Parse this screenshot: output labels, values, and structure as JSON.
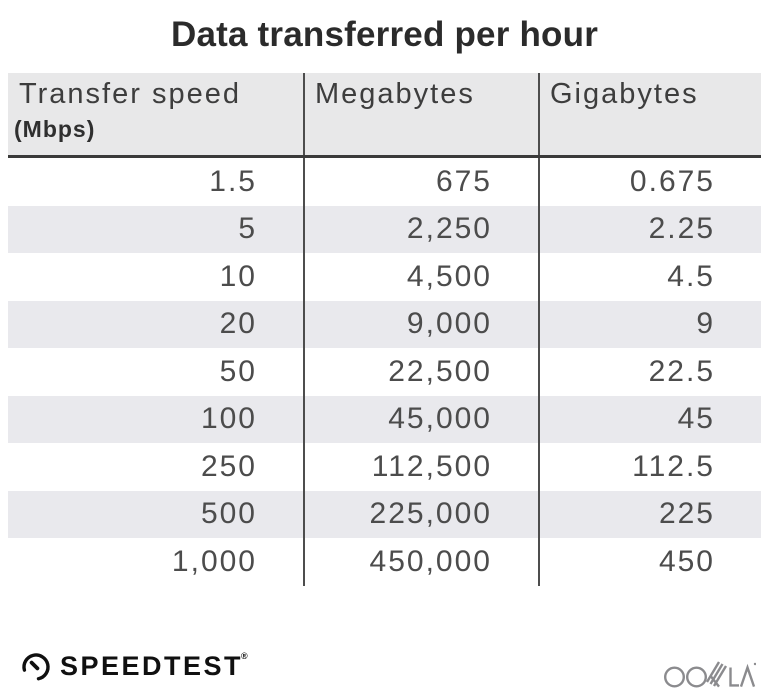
{
  "title": "Data transferred per hour",
  "table": {
    "columns": [
      {
        "label": "Transfer speed",
        "sublabel": "(Mbps)"
      },
      {
        "label": "Megabytes"
      },
      {
        "label": "Gigabytes"
      }
    ],
    "rows": [
      [
        "1.5",
        "675",
        "0.675"
      ],
      [
        "5",
        "2,250",
        "2.25"
      ],
      [
        "10",
        "4,500",
        "4.5"
      ],
      [
        "20",
        "9,000",
        "9"
      ],
      [
        "50",
        "22,500",
        "22.5"
      ],
      [
        "100",
        "45,000",
        "45"
      ],
      [
        "250",
        "112,500",
        "112.5"
      ],
      [
        "500",
        "225,000",
        "225"
      ],
      [
        "1,000",
        "450,000",
        "450"
      ]
    ]
  },
  "footer": {
    "speedtest_label": "SPEEDTEST",
    "reg_mark": "®",
    "ookla_label": "OOKLA"
  },
  "colors": {
    "header_bg": "#e8e8e9",
    "alt_row_bg": "#e9e9ed",
    "divider": "#4d4d4d",
    "text_dark": "#2b2b2b",
    "ookla_gray": "#8b8b8e"
  },
  "chart_data": {
    "type": "table",
    "title": "Data transferred per hour",
    "columns": [
      "Transfer speed (Mbps)",
      "Megabytes",
      "Gigabytes"
    ],
    "rows": [
      [
        1.5,
        675,
        0.675
      ],
      [
        5,
        2250,
        2.25
      ],
      [
        10,
        4500,
        4.5
      ],
      [
        20,
        9000,
        9
      ],
      [
        50,
        22500,
        22.5
      ],
      [
        100,
        45000,
        45
      ],
      [
        250,
        112500,
        112.5
      ],
      [
        500,
        225000,
        225
      ],
      [
        1000,
        450000,
        450
      ]
    ]
  }
}
